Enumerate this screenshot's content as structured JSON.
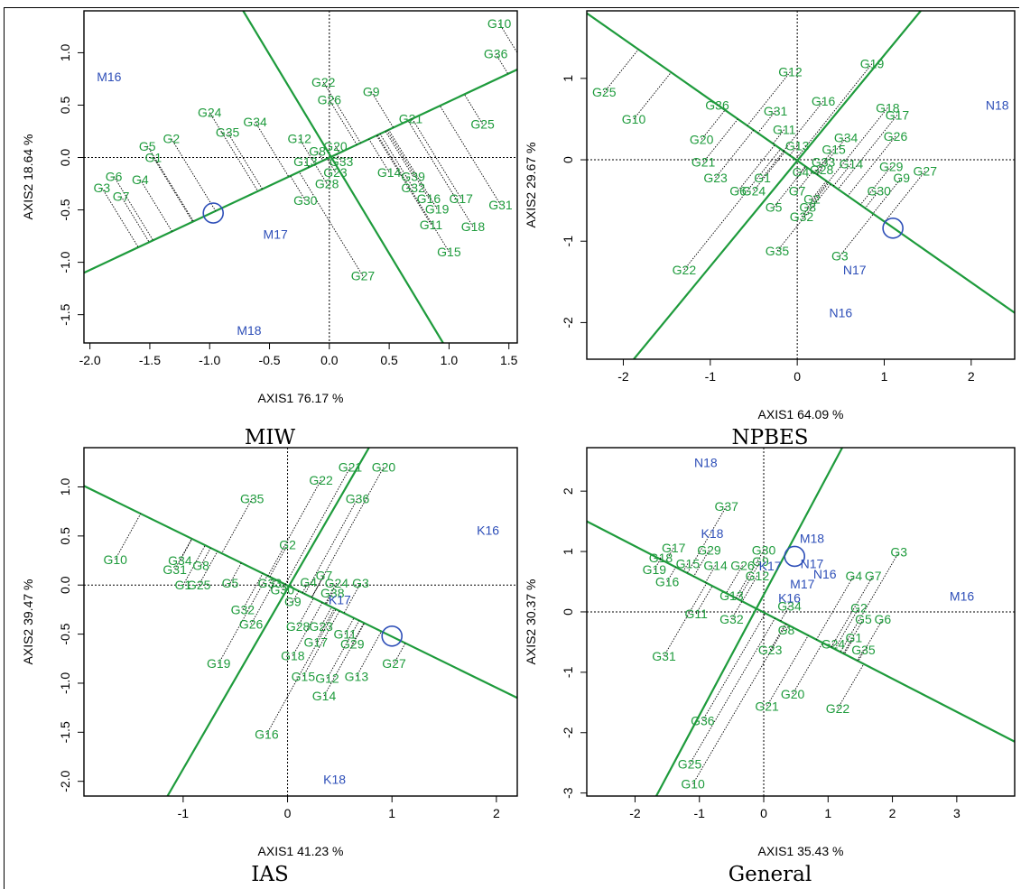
{
  "chart_data": [
    {
      "type": "scatter",
      "title": "MIW",
      "xlabel": "AXIS1 76.17 %",
      "ylabel": "AXIS2 18.64 %",
      "xlim": [
        -2.05,
        1.57
      ],
      "ylim": [
        -1.77,
        1.4
      ],
      "xticks": [
        "-2.0",
        "-1.5",
        "-1.0",
        "-0.5",
        "0.0",
        "0.5",
        "1.0",
        "1.5"
      ],
      "yticks": [
        "-1.5",
        "-1.0",
        "-0.5",
        "0.0",
        "0.5",
        "1.0"
      ],
      "circle": [
        -0.97,
        -0.53
      ],
      "lines": [
        [
          [
            -2.05,
            -1.1
          ],
          [
            1.57,
            0.84
          ]
        ],
        [
          [
            -0.72,
            1.4
          ],
          [
            0.95,
            -1.77
          ]
        ]
      ],
      "environments": [
        {
          "label": "M16",
          "x": -1.84,
          "y": 0.77
        },
        {
          "label": "M17",
          "x": -0.45,
          "y": -0.73
        },
        {
          "label": "M18",
          "x": -0.67,
          "y": -1.65
        }
      ],
      "genotypes": [
        {
          "label": "G10",
          "x": 1.42,
          "y": 1.28
        },
        {
          "label": "G36",
          "x": 1.39,
          "y": 0.99
        },
        {
          "label": "G22",
          "x": -0.05,
          "y": 0.72
        },
        {
          "label": "G9",
          "x": 0.35,
          "y": 0.63
        },
        {
          "label": "G26",
          "x": 0.0,
          "y": 0.55
        },
        {
          "label": "G24",
          "x": -1.0,
          "y": 0.43
        },
        {
          "label": "G34",
          "x": -0.62,
          "y": 0.34
        },
        {
          "label": "G21",
          "x": 0.68,
          "y": 0.37
        },
        {
          "label": "G25",
          "x": 1.28,
          "y": 0.32
        },
        {
          "label": "G35",
          "x": -0.85,
          "y": 0.24
        },
        {
          "label": "G2",
          "x": -1.32,
          "y": 0.18
        },
        {
          "label": "G12",
          "x": -0.25,
          "y": 0.18
        },
        {
          "label": "G5",
          "x": -1.52,
          "y": 0.11
        },
        {
          "label": "G20",
          "x": 0.05,
          "y": 0.11
        },
        {
          "label": "G8",
          "x": -0.1,
          "y": 0.06
        },
        {
          "label": "G1",
          "x": -1.47,
          "y": 0.0
        },
        {
          "label": "G13",
          "x": -0.2,
          "y": -0.04
        },
        {
          "label": "G33",
          "x": 0.1,
          "y": -0.04
        },
        {
          "label": "G23",
          "x": 0.05,
          "y": -0.14
        },
        {
          "label": "G14",
          "x": 0.5,
          "y": -0.14
        },
        {
          "label": "G39",
          "x": 0.7,
          "y": -0.18
        },
        {
          "label": "G4",
          "x": -1.58,
          "y": -0.21
        },
        {
          "label": "G28",
          "x": -0.02,
          "y": -0.25
        },
        {
          "label": "G6",
          "x": -1.8,
          "y": -0.18
        },
        {
          "label": "G32",
          "x": 0.7,
          "y": -0.29
        },
        {
          "label": "G3",
          "x": -1.9,
          "y": -0.29
        },
        {
          "label": "G7",
          "x": -1.74,
          "y": -0.37
        },
        {
          "label": "G30",
          "x": -0.2,
          "y": -0.41
        },
        {
          "label": "G16",
          "x": 0.83,
          "y": -0.39
        },
        {
          "label": "G17",
          "x": 1.1,
          "y": -0.39
        },
        {
          "label": "G31",
          "x": 1.43,
          "y": -0.45
        },
        {
          "label": "G19",
          "x": 0.9,
          "y": -0.49
        },
        {
          "label": "G11",
          "x": 0.85,
          "y": -0.64
        },
        {
          "label": "G18",
          "x": 1.2,
          "y": -0.66
        },
        {
          "label": "G15",
          "x": 1.0,
          "y": -0.9
        },
        {
          "label": "G27",
          "x": 0.28,
          "y": -1.13
        }
      ]
    },
    {
      "type": "scatter",
      "title": "NPBES",
      "xlabel": "AXIS1 64.09 %",
      "ylabel": "AXIS2 29.67 %",
      "xlim": [
        -2.42,
        2.5
      ],
      "ylim": [
        -2.45,
        1.83
      ],
      "xticks": [
        "-2",
        "-1",
        "0",
        "1",
        "2"
      ],
      "yticks": [
        "-2",
        "-1",
        "0",
        "1"
      ],
      "circle": [
        1.1,
        -0.84
      ],
      "lines": [
        [
          [
            -2.42,
            1.8
          ],
          [
            2.5,
            -1.88
          ]
        ],
        [
          [
            -1.88,
            -2.45
          ],
          [
            1.42,
            1.83
          ]
        ]
      ],
      "environments": [
        {
          "label": "N18",
          "x": 2.3,
          "y": 0.67
        },
        {
          "label": "N17",
          "x": 0.66,
          "y": -1.35
        },
        {
          "label": "N16",
          "x": 0.5,
          "y": -1.88
        }
      ],
      "genotypes": [
        {
          "label": "G25",
          "x": -2.22,
          "y": 0.83
        },
        {
          "label": "G10",
          "x": -1.88,
          "y": 0.5
        },
        {
          "label": "G12",
          "x": -0.08,
          "y": 1.08
        },
        {
          "label": "G19",
          "x": 0.86,
          "y": 1.18
        },
        {
          "label": "G36",
          "x": -0.92,
          "y": 0.67
        },
        {
          "label": "G16",
          "x": 0.3,
          "y": 0.72
        },
        {
          "label": "G31",
          "x": -0.25,
          "y": 0.6
        },
        {
          "label": "G18",
          "x": 1.04,
          "y": 0.64
        },
        {
          "label": "G17",
          "x": 1.15,
          "y": 0.55
        },
        {
          "label": "G11",
          "x": -0.15,
          "y": 0.37
        },
        {
          "label": "G20",
          "x": -1.1,
          "y": 0.25
        },
        {
          "label": "G26",
          "x": 1.13,
          "y": 0.29
        },
        {
          "label": "G34",
          "x": 0.56,
          "y": 0.27
        },
        {
          "label": "G13",
          "x": 0.0,
          "y": 0.17
        },
        {
          "label": "G15",
          "x": 0.42,
          "y": 0.13
        },
        {
          "label": "G21",
          "x": -1.08,
          "y": -0.03
        },
        {
          "label": "G33",
          "x": 0.3,
          "y": -0.03
        },
        {
          "label": "G14",
          "x": 0.62,
          "y": -0.05
        },
        {
          "label": "G29",
          "x": 1.08,
          "y": -0.08
        },
        {
          "label": "G27",
          "x": 1.47,
          "y": -0.14
        },
        {
          "label": "G4",
          "x": 0.04,
          "y": -0.15
        },
        {
          "label": "G28",
          "x": 0.28,
          "y": -0.12
        },
        {
          "label": "G1",
          "x": -0.4,
          "y": -0.22
        },
        {
          "label": "G9",
          "x": 1.2,
          "y": -0.22
        },
        {
          "label": "G23",
          "x": -0.94,
          "y": -0.22
        },
        {
          "label": "G6",
          "x": -0.68,
          "y": -0.38
        },
        {
          "label": "G24",
          "x": -0.5,
          "y": -0.38
        },
        {
          "label": "G7",
          "x": 0.0,
          "y": -0.38
        },
        {
          "label": "G30",
          "x": 0.94,
          "y": -0.38
        },
        {
          "label": "G2",
          "x": 0.17,
          "y": -0.48
        },
        {
          "label": "G8",
          "x": 0.12,
          "y": -0.58
        },
        {
          "label": "G5",
          "x": -0.27,
          "y": -0.58
        },
        {
          "label": "G32",
          "x": 0.05,
          "y": -0.7
        },
        {
          "label": "G35",
          "x": -0.23,
          "y": -1.12
        },
        {
          "label": "G3",
          "x": 0.49,
          "y": -1.18
        },
        {
          "label": "G22",
          "x": -1.3,
          "y": -1.35
        }
      ]
    },
    {
      "type": "scatter",
      "title": "IAS",
      "xlabel": "AXIS1 41.23 %",
      "ylabel": "AXIS2 39.47 %",
      "xlim": [
        -1.95,
        2.2
      ],
      "ylim": [
        -2.15,
        1.4
      ],
      "xticks": [
        "-1",
        "0",
        "1",
        "2"
      ],
      "yticks": [
        "-2.0",
        "-1.5",
        "-1.0",
        "-0.5",
        "0.0",
        "0.5",
        "1.0"
      ],
      "circle": [
        1.0,
        -0.52
      ],
      "lines": [
        [
          [
            -1.95,
            1.01
          ],
          [
            2.2,
            -1.15
          ]
        ],
        [
          [
            -1.15,
            -2.15
          ],
          [
            0.78,
            1.4
          ]
        ]
      ],
      "environments": [
        {
          "label": "K16",
          "x": 1.92,
          "y": 0.56
        },
        {
          "label": "K17",
          "x": 0.5,
          "y": -0.15
        },
        {
          "label": "K18",
          "x": 0.45,
          "y": -1.98
        }
      ],
      "genotypes": [
        {
          "label": "G21",
          "x": 0.6,
          "y": 1.2
        },
        {
          "label": "G20",
          "x": 0.92,
          "y": 1.2
        },
        {
          "label": "G22",
          "x": 0.32,
          "y": 1.07
        },
        {
          "label": "G36",
          "x": 0.67,
          "y": 0.88
        },
        {
          "label": "G35",
          "x": -0.34,
          "y": 0.88
        },
        {
          "label": "G2",
          "x": 0.0,
          "y": 0.41
        },
        {
          "label": "G10",
          "x": -1.65,
          "y": 0.26
        },
        {
          "label": "G34",
          "x": -1.03,
          "y": 0.25
        },
        {
          "label": "G8",
          "x": -0.83,
          "y": 0.2
        },
        {
          "label": "G31",
          "x": -1.08,
          "y": 0.16
        },
        {
          "label": "G7",
          "x": 0.35,
          "y": 0.1
        },
        {
          "label": "G1",
          "x": -1.0,
          "y": 0.0
        },
        {
          "label": "G25",
          "x": -0.85,
          "y": 0.0
        },
        {
          "label": "G5",
          "x": -0.55,
          "y": 0.02
        },
        {
          "label": "G33",
          "x": -0.17,
          "y": 0.02
        },
        {
          "label": "G4",
          "x": 0.2,
          "y": 0.03
        },
        {
          "label": "G24",
          "x": 0.47,
          "y": 0.02
        },
        {
          "label": "G3",
          "x": 0.7,
          "y": 0.02
        },
        {
          "label": "G30",
          "x": -0.05,
          "y": -0.05
        },
        {
          "label": "G38",
          "x": 0.43,
          "y": -0.08
        },
        {
          "label": "G9",
          "x": 0.05,
          "y": -0.17
        },
        {
          "label": "G32",
          "x": -0.43,
          "y": -0.25
        },
        {
          "label": "G26",
          "x": -0.35,
          "y": -0.4
        },
        {
          "label": "G28",
          "x": 0.1,
          "y": -0.42
        },
        {
          "label": "G23",
          "x": 0.32,
          "y": -0.42
        },
        {
          "label": "G11",
          "x": 0.55,
          "y": -0.5
        },
        {
          "label": "G17",
          "x": 0.27,
          "y": -0.58
        },
        {
          "label": "G29",
          "x": 0.62,
          "y": -0.6
        },
        {
          "label": "G18",
          "x": 0.05,
          "y": -0.72
        },
        {
          "label": "G19",
          "x": -0.66,
          "y": -0.8
        },
        {
          "label": "G15",
          "x": 0.15,
          "y": -0.93
        },
        {
          "label": "G12",
          "x": 0.38,
          "y": -0.95
        },
        {
          "label": "G13",
          "x": 0.66,
          "y": -0.93
        },
        {
          "label": "G27",
          "x": 1.02,
          "y": -0.8
        },
        {
          "label": "G14",
          "x": 0.35,
          "y": -1.13
        },
        {
          "label": "G16",
          "x": -0.2,
          "y": -1.52
        }
      ]
    },
    {
      "type": "scatter",
      "title": "General",
      "xlabel": "AXIS1 35.43 %",
      "ylabel": "AXIS2 30.37 %",
      "xlim": [
        -2.75,
        3.9
      ],
      "ylim": [
        -3.05,
        2.72
      ],
      "xticks": [
        "-2",
        "-1",
        "0",
        "1",
        "2",
        "3"
      ],
      "yticks": [
        "-3",
        "-2",
        "-1",
        "0",
        "1",
        "2"
      ],
      "circle": [
        0.48,
        0.92
      ],
      "lines": [
        [
          [
            -2.75,
            1.5
          ],
          [
            3.9,
            -2.15
          ]
        ],
        [
          [
            -1.67,
            -3.05
          ],
          [
            1.22,
            2.72
          ]
        ]
      ],
      "environments": [
        {
          "label": "N18",
          "x": -0.9,
          "y": 2.47
        },
        {
          "label": "K18",
          "x": -0.8,
          "y": 1.3
        },
        {
          "label": "M18",
          "x": 0.75,
          "y": 1.22
        },
        {
          "label": "K17",
          "x": 0.1,
          "y": 0.76
        },
        {
          "label": "N17",
          "x": 0.75,
          "y": 0.8
        },
        {
          "label": "N16",
          "x": 0.95,
          "y": 0.63
        },
        {
          "label": "M17",
          "x": 0.6,
          "y": 0.46
        },
        {
          "label": "K16",
          "x": 0.4,
          "y": 0.23
        },
        {
          "label": "M16",
          "x": 3.08,
          "y": 0.26
        }
      ],
      "genotypes": [
        {
          "label": "G37",
          "x": -0.58,
          "y": 1.75
        },
        {
          "label": "G3",
          "x": 2.1,
          "y": 0.99
        },
        {
          "label": "G17",
          "x": -1.4,
          "y": 1.06
        },
        {
          "label": "G29",
          "x": -0.85,
          "y": 1.02
        },
        {
          "label": "G30",
          "x": 0.0,
          "y": 1.02
        },
        {
          "label": "G18",
          "x": -1.6,
          "y": 0.9
        },
        {
          "label": "G9",
          "x": -0.05,
          "y": 0.84
        },
        {
          "label": "G15",
          "x": -1.18,
          "y": 0.8
        },
        {
          "label": "G14",
          "x": -0.75,
          "y": 0.77
        },
        {
          "label": "G26",
          "x": -0.33,
          "y": 0.77
        },
        {
          "label": "G19",
          "x": -1.7,
          "y": 0.7
        },
        {
          "label": "G12",
          "x": -0.1,
          "y": 0.6
        },
        {
          "label": "G4",
          "x": 1.4,
          "y": 0.6
        },
        {
          "label": "G7",
          "x": 1.7,
          "y": 0.6
        },
        {
          "label": "G16",
          "x": -1.5,
          "y": 0.5
        },
        {
          "label": "G13",
          "x": -0.5,
          "y": 0.27
        },
        {
          "label": "G34",
          "x": 0.4,
          "y": 0.1
        },
        {
          "label": "G2",
          "x": 1.48,
          "y": 0.07
        },
        {
          "label": "G11",
          "x": -1.05,
          "y": -0.03
        },
        {
          "label": "G32",
          "x": -0.5,
          "y": -0.12
        },
        {
          "label": "G5",
          "x": 1.55,
          "y": -0.12
        },
        {
          "label": "G6",
          "x": 1.85,
          "y": -0.12
        },
        {
          "label": "G8",
          "x": 0.35,
          "y": -0.3
        },
        {
          "label": "G1",
          "x": 1.4,
          "y": -0.43
        },
        {
          "label": "G24",
          "x": 1.08,
          "y": -0.53
        },
        {
          "label": "G35",
          "x": 1.55,
          "y": -0.63
        },
        {
          "label": "G23",
          "x": 0.1,
          "y": -0.63
        },
        {
          "label": "G31",
          "x": -1.55,
          "y": -0.73
        },
        {
          "label": "G20",
          "x": 0.45,
          "y": -1.36
        },
        {
          "label": "G21",
          "x": 0.05,
          "y": -1.56
        },
        {
          "label": "G22",
          "x": 1.15,
          "y": -1.6
        },
        {
          "label": "G36",
          "x": -0.95,
          "y": -1.8
        },
        {
          "label": "G25",
          "x": -1.15,
          "y": -2.52
        },
        {
          "label": "G10",
          "x": -1.1,
          "y": -2.85
        }
      ]
    }
  ]
}
